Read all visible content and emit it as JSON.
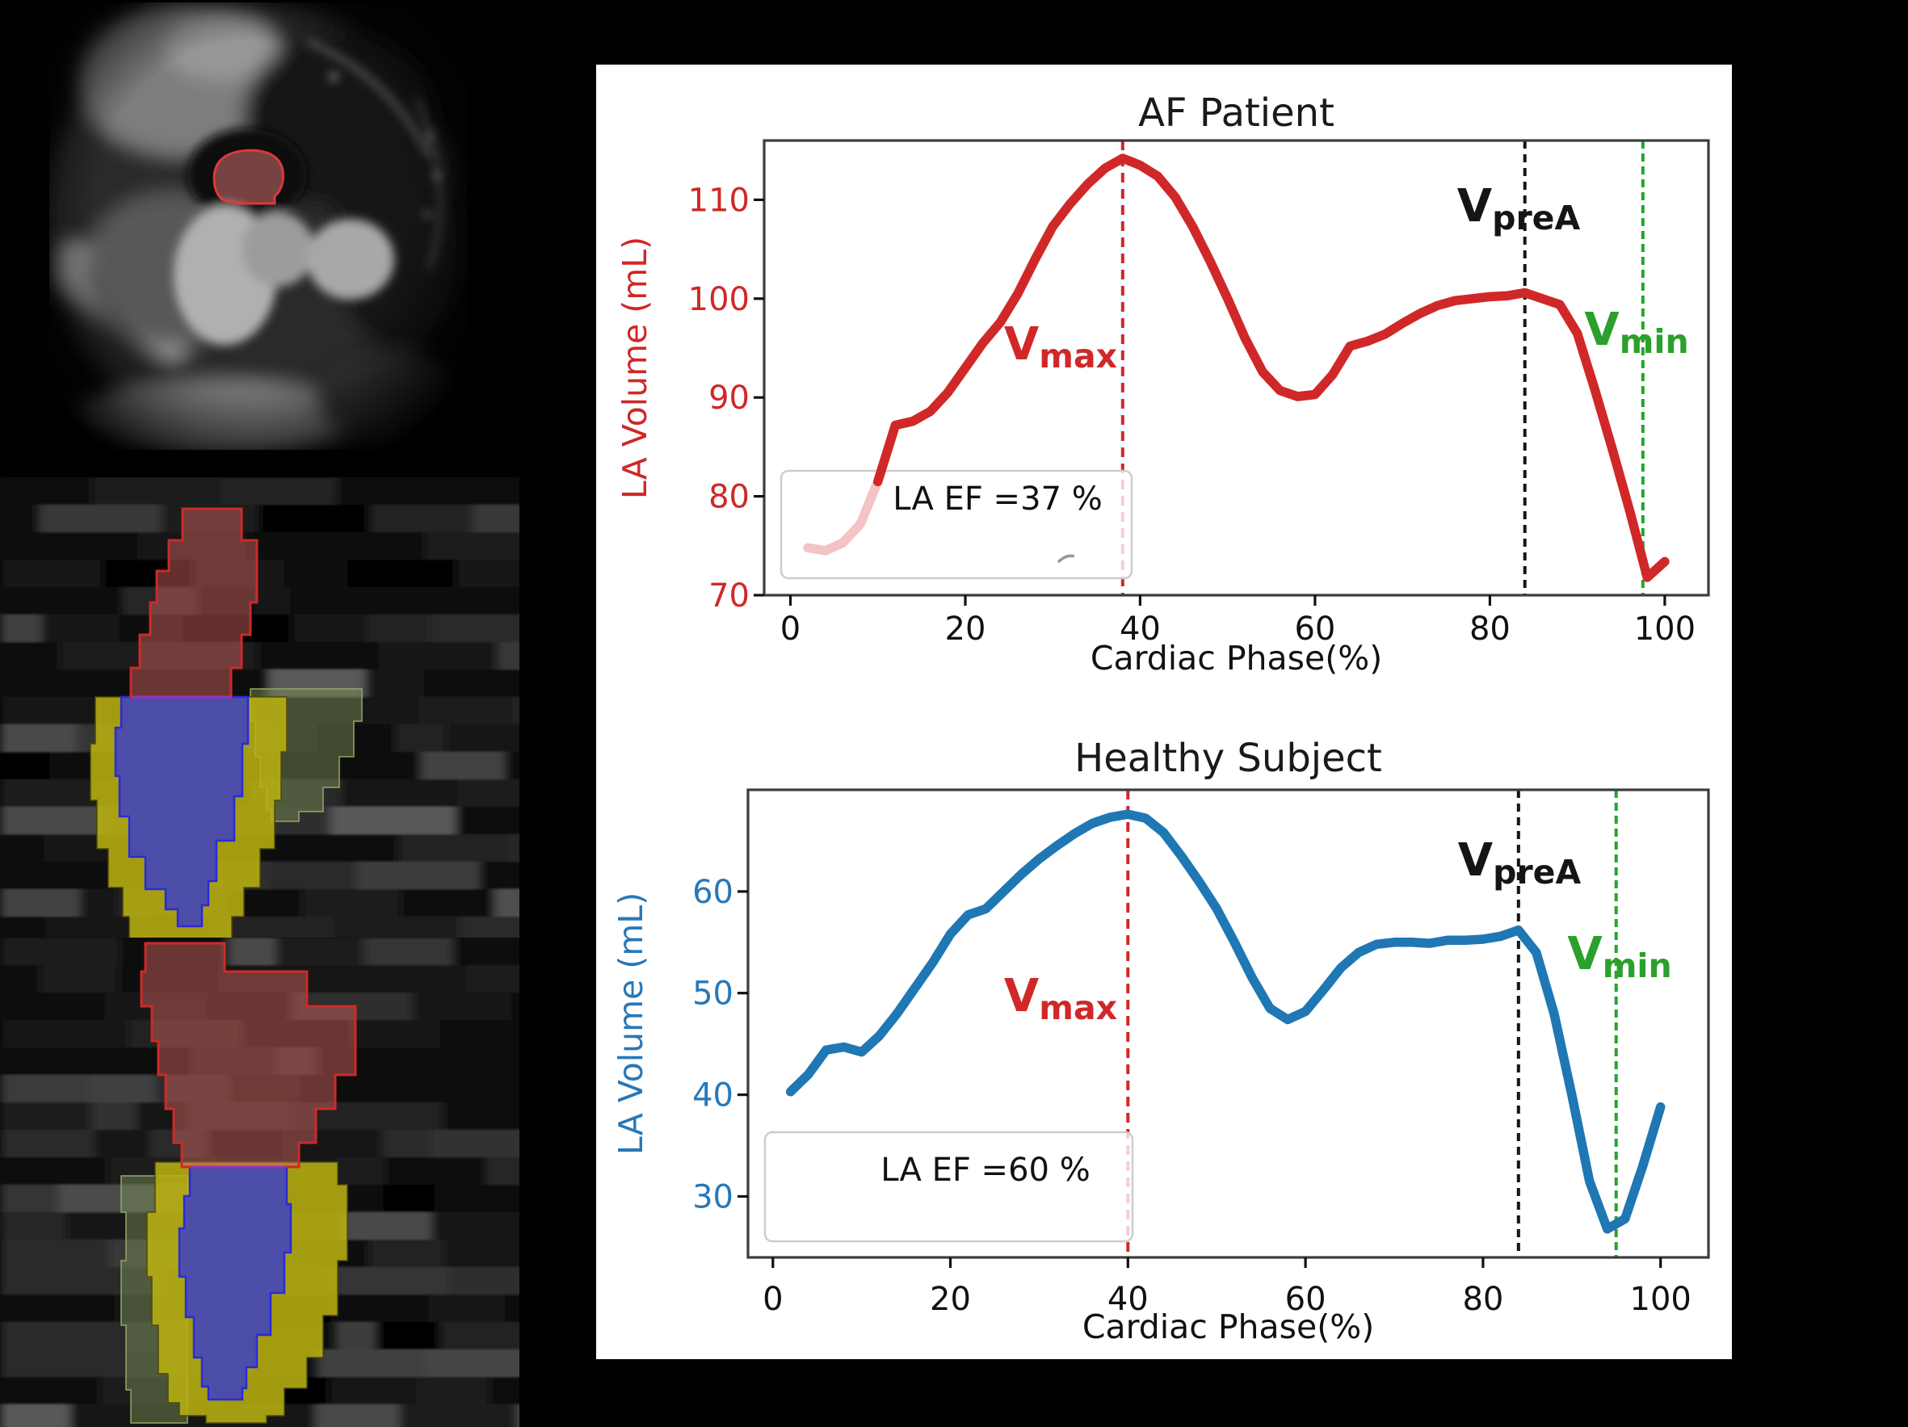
{
  "figure": {
    "background": "#000000",
    "panels": {
      "mri_axial": {
        "description": "Axial cardiac MRI slice with left-atrium segmentation overlay"
      },
      "seg_long_axis_top": {
        "description": "Long-axis reformatted MRI with chamber segmentation overlay"
      },
      "seg_long_axis_bottom": {
        "description": "Long-axis reformatted MRI with chamber segmentation overlay"
      }
    },
    "seg_colors": {
      "la_fill": "#c85f5a",
      "la_stroke": "#cc2a2a",
      "lv_fill": "#3c40c3",
      "lv_stroke": "#2a2ad8",
      "myo_fill": "#b8b012",
      "myo_stroke": "#4e4a08",
      "rv_fill": "#7f9458",
      "rv_stroke": "#93a868",
      "seam_stroke": "#9b30c0",
      "mri_la_fill": "#e07878",
      "mri_la_stroke": "#e03838",
      "corner_mark": "#e08018"
    }
  },
  "chart_data": [
    {
      "type": "line",
      "title": "AF Patient",
      "xlabel": "Cardiac Phase(%)",
      "ylabel": "LA Volume (mL)",
      "axis_color": "#d02828",
      "line_color": "#d02828",
      "line_start_color": "#f4c3c5",
      "start_segment_points": 5,
      "xlim": [
        -3,
        105
      ],
      "ylim": [
        70,
        116
      ],
      "xticks": [
        0,
        20,
        40,
        60,
        80,
        100
      ],
      "yticks": [
        70,
        80,
        90,
        100,
        110
      ],
      "annotation": "LA EF =37 %",
      "markers": [
        {
          "label": "Vmax",
          "x": 38,
          "color": "#d02828",
          "style": "dashed"
        },
        {
          "label": "VpreA",
          "x": 84,
          "color": "#151515",
          "style": "dashed"
        },
        {
          "label": "Vmin",
          "x": 97.5,
          "color": "#22a52c",
          "label_color": "#2ca02c",
          "style": "dashed"
        }
      ],
      "x": [
        2,
        4,
        6,
        8,
        10,
        12,
        14,
        16,
        18,
        20,
        22,
        24,
        26,
        28,
        30,
        32,
        34,
        36,
        38,
        40,
        42,
        44,
        46,
        48,
        50,
        52,
        54,
        56,
        58,
        60,
        62,
        64,
        66,
        68,
        70,
        72,
        74,
        76,
        78,
        80,
        82,
        84,
        86,
        88,
        90,
        92,
        94,
        96,
        98,
        100
      ],
      "y": [
        74.8,
        74.5,
        75.3,
        77.2,
        81.5,
        87.2,
        87.6,
        88.6,
        90.5,
        93.0,
        95.5,
        97.6,
        100.5,
        104.0,
        107.3,
        109.6,
        111.6,
        113.2,
        114.2,
        113.5,
        112.4,
        110.3,
        107.3,
        103.8,
        100.0,
        96.0,
        92.6,
        90.7,
        90.1,
        90.3,
        92.3,
        95.2,
        95.7,
        96.4,
        97.5,
        98.5,
        99.3,
        99.8,
        100.0,
        100.2,
        100.3,
        100.6,
        100.0,
        99.4,
        96.5,
        90.8,
        84.8,
        78.5,
        71.8,
        73.4
      ]
    },
    {
      "type": "line",
      "title": "Healthy Subject",
      "xlabel": "Cardiac Phase(%)",
      "ylabel": "LA Volume (mL)",
      "axis_color": "#2878b8",
      "line_color": "#1f77b4",
      "line_start_color": "",
      "start_segment_points": 0,
      "xlim": [
        -2.8,
        105.4
      ],
      "ylim": [
        24,
        70
      ],
      "xticks": [
        0,
        20,
        40,
        60,
        80,
        100
      ],
      "yticks": [
        30,
        40,
        50,
        60
      ],
      "annotation": "LA EF =60 %",
      "markers": [
        {
          "label": "Vmax",
          "x": 40,
          "color": "#d02828",
          "style": "dashed"
        },
        {
          "label": "VpreA",
          "x": 84,
          "color": "#151515",
          "style": "dashed"
        },
        {
          "label": "Vmin",
          "x": 95,
          "color": "#22a52c",
          "label_color": "#2ca02c",
          "style": "dashed"
        }
      ],
      "x": [
        2,
        4,
        6,
        8,
        10,
        12,
        14,
        16,
        18,
        20,
        22,
        24,
        26,
        28,
        30,
        32,
        34,
        36,
        38,
        40,
        42,
        44,
        46,
        48,
        50,
        52,
        54,
        56,
        58,
        60,
        62,
        64,
        66,
        68,
        70,
        72,
        74,
        76,
        78,
        80,
        82,
        84,
        86,
        88,
        90,
        92,
        94,
        96,
        98,
        100
      ],
      "y": [
        40.3,
        42.0,
        44.4,
        44.7,
        44.2,
        45.8,
        48.0,
        50.5,
        53.0,
        55.8,
        57.7,
        58.3,
        60.0,
        61.7,
        63.2,
        64.5,
        65.7,
        66.7,
        67.3,
        67.6,
        67.2,
        65.8,
        63.5,
        61.0,
        58.3,
        55.0,
        51.5,
        48.5,
        47.4,
        48.2,
        50.3,
        52.5,
        54.0,
        54.8,
        55.0,
        55.0,
        54.9,
        55.2,
        55.2,
        55.3,
        55.6,
        56.2,
        54.0,
        48.0,
        40.0,
        31.5,
        26.8,
        27.8,
        33.0,
        38.8
      ]
    }
  ]
}
